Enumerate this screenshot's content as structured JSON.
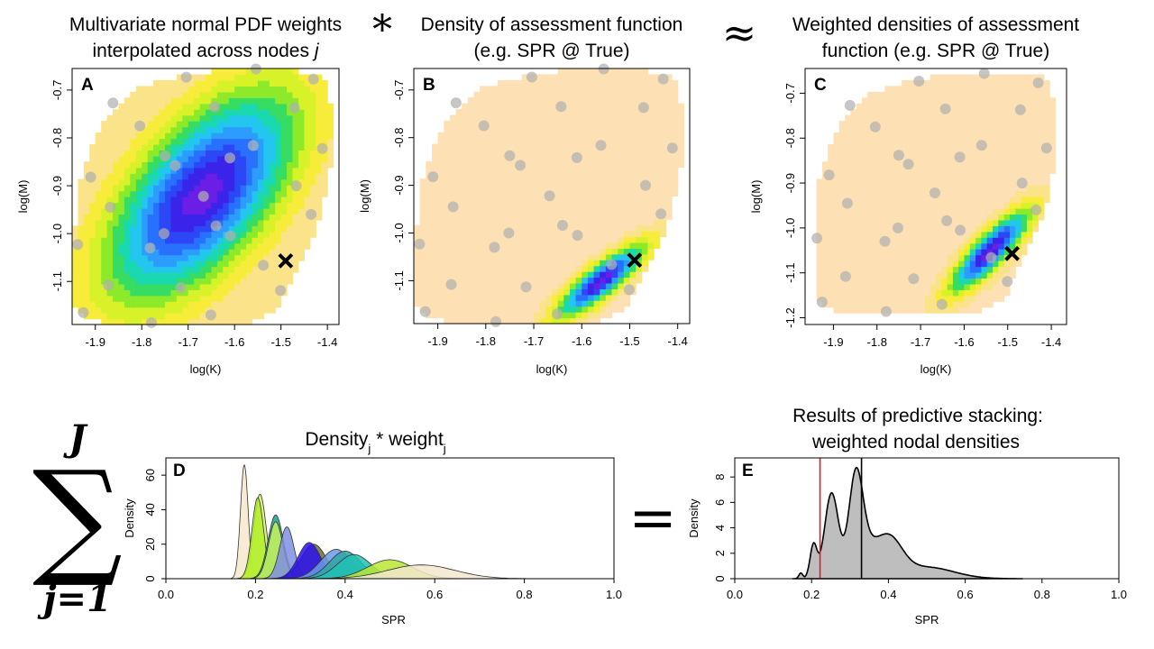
{
  "operators": {
    "times": "*",
    "approx": "≈",
    "equals": "="
  },
  "sum_symbol": {
    "sigma": "∑",
    "upper": "J",
    "lower": "j=1"
  },
  "chart_data": [
    {
      "panel": "A",
      "type": "heatmap",
      "title_lines": [
        "Multivariate normal PDF weights",
        "interpolated across nodes "
      ],
      "title_italic": "j",
      "xlabel": "log(K)",
      "ylabel": "log(M)",
      "xlim": [
        -1.95,
        -1.375
      ],
      "ylim": [
        -1.19,
        -0.655
      ],
      "xticks": [
        -1.9,
        -1.8,
        -1.7,
        -1.6,
        -1.5,
        -1.4
      ],
      "yticks": [
        -1.1,
        -1.0,
        -0.9,
        -0.8,
        -0.7
      ],
      "ytick_labels": [
        "-1.1",
        "-1.0",
        "-0.9",
        "-0.8",
        "-0.7"
      ],
      "peak": [
        -1.67,
        -0.92
      ],
      "spread": [
        0.14,
        0.15
      ],
      "corr": 0.6,
      "marker_x": [
        -1.49,
        -1.057
      ]
    },
    {
      "panel": "B",
      "type": "heatmap",
      "title_lines": [
        "Density of assessment function",
        "(e.g. SPR @ True)"
      ],
      "xlabel": "log(K)",
      "ylabel": "log(M)",
      "xlim": [
        -1.95,
        -1.375
      ],
      "ylim": [
        -1.19,
        -0.655
      ],
      "xticks": [
        -1.9,
        -1.8,
        -1.7,
        -1.6,
        -1.5,
        -1.4
      ],
      "yticks": [
        -1.1,
        -1.0,
        -0.9,
        -0.8,
        -0.7
      ],
      "ytick_labels": [
        "-1.1",
        "-1.0",
        "-0.9",
        "-0.8",
        "-0.7"
      ],
      "peak": [
        -1.56,
        -1.1
      ],
      "spread": [
        0.06,
        0.05
      ],
      "corr": 0.85,
      "marker_x": [
        -1.49,
        -1.057
      ]
    },
    {
      "panel": "C",
      "type": "heatmap",
      "title_lines": [
        "Weighted densities of assessment",
        "function (e.g. SPR @ True)"
      ],
      "xlabel": "log(K)",
      "ylabel": "log(M)",
      "xlim": [
        -1.965,
        -1.365
      ],
      "ylim": [
        -1.215,
        -0.645
      ],
      "xticks": [
        -1.9,
        -1.8,
        -1.7,
        -1.6,
        -1.5,
        -1.4
      ],
      "yticks": [
        -1.2,
        -1.1,
        -1.0,
        -0.9,
        -0.8,
        -0.7
      ],
      "ytick_labels": [
        "-1.2",
        "-1.1",
        "-1.0",
        "-0.9",
        "-0.8",
        "-0.7"
      ],
      "peak": [
        -1.54,
        -1.05
      ],
      "spread": [
        0.06,
        0.06
      ],
      "corr": 0.85,
      "marker_x": [
        -1.49,
        -1.057
      ]
    },
    {
      "panel": "D",
      "type": "area",
      "title": "Density",
      "title_sub1": "j",
      "title_mid": " * weight",
      "title_sub2": "j",
      "xlabel": "SPR",
      "ylabel": "Density",
      "xlim": [
        0,
        1
      ],
      "ylim": [
        0,
        70
      ],
      "xticks": [
        0,
        0.2,
        0.4,
        0.6,
        0.8,
        1.0
      ],
      "xtick_labels": [
        "0.0",
        "0.2",
        "0.4",
        "0.6",
        "0.8",
        "1.0"
      ],
      "yticks": [
        0,
        20,
        40,
        60
      ],
      "curves": [
        {
          "mu": 0.175,
          "sd": 0.0085,
          "peak": 66,
          "color": "#f6e7cc"
        },
        {
          "mu": 0.21,
          "sd": 0.014,
          "peak": 49,
          "color": "#d4f06a"
        },
        {
          "mu": 0.205,
          "sd": 0.013,
          "peak": 47,
          "color": "#b2ef2a"
        },
        {
          "mu": 0.245,
          "sd": 0.017,
          "peak": 37,
          "color": "#1aa18a"
        },
        {
          "mu": 0.245,
          "sd": 0.016,
          "peak": 33,
          "color": "#c8f25a"
        },
        {
          "mu": 0.27,
          "sd": 0.016,
          "peak": 30,
          "color": "#7f8fe0"
        },
        {
          "mu": 0.33,
          "sd": 0.028,
          "peak": 20,
          "color": "#6f6f3a"
        },
        {
          "mu": 0.32,
          "sd": 0.025,
          "peak": 21,
          "color": "#2a10ee"
        },
        {
          "mu": 0.38,
          "sd": 0.035,
          "peak": 17,
          "color": "#6a9ae8"
        },
        {
          "mu": 0.4,
          "sd": 0.035,
          "peak": 16,
          "color": "#2fa6a6"
        },
        {
          "mu": 0.42,
          "sd": 0.037,
          "peak": 14,
          "color": "#21c1b4"
        },
        {
          "mu": 0.5,
          "sd": 0.05,
          "peak": 11,
          "color": "#b8e832"
        },
        {
          "mu": 0.57,
          "sd": 0.075,
          "peak": 8,
          "color": "#f3e6cd"
        }
      ]
    },
    {
      "panel": "E",
      "type": "area",
      "title_lines": [
        "Results of predictive stacking:",
        "weighted nodal densities"
      ],
      "xlabel": "SPR",
      "ylabel": "Density",
      "xlim": [
        0,
        1
      ],
      "ylim": [
        0,
        9.5
      ],
      "xticks": [
        0,
        0.2,
        0.4,
        0.6,
        0.8,
        1.0
      ],
      "xtick_labels": [
        "0.0",
        "0.2",
        "0.4",
        "0.6",
        "0.8",
        "1.0"
      ],
      "yticks": [
        0,
        2,
        4,
        6,
        8
      ],
      "fill": "#bebebe",
      "components": [
        {
          "mu": 0.172,
          "sd": 0.005,
          "peak": 0.45
        },
        {
          "mu": 0.205,
          "sd": 0.009,
          "peak": 2.6
        },
        {
          "mu": 0.252,
          "sd": 0.018,
          "peak": 6.7
        },
        {
          "mu": 0.315,
          "sd": 0.018,
          "peak": 6.9
        },
        {
          "mu": 0.335,
          "sd": 0.03,
          "peak": 2.0
        },
        {
          "mu": 0.4,
          "sd": 0.035,
          "peak": 3.0
        },
        {
          "mu": 0.5,
          "sd": 0.07,
          "peak": 0.9
        }
      ],
      "vline_red": 0.222,
      "vline_black": 0.33,
      "vline_red_color": "#e41a1c",
      "vline_black_color": "#000000"
    }
  ]
}
